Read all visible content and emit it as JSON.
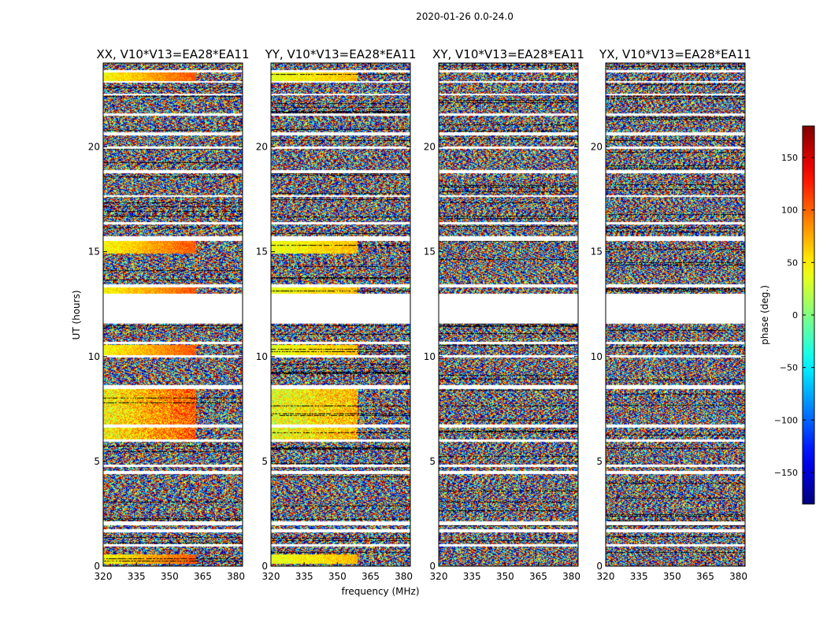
{
  "figure": {
    "suptitle": "2020-01-26 0.0-24.0"
  },
  "chart_data": {
    "type": "heatmap",
    "suptitle": "2020-01-26 0.0-24.0",
    "xlabel": "frequency (MHz)",
    "ylabel": "UT (hours)",
    "xlim": [
      320,
      383
    ],
    "ylim": [
      0,
      24
    ],
    "x_ticks": [
      320,
      335,
      350,
      365,
      380
    ],
    "y_ticks": [
      0,
      5,
      10,
      15,
      20
    ],
    "colormap": "jet",
    "colorbar": {
      "label": "phase (deg.)",
      "range": [
        -180,
        180
      ],
      "ticks": [
        -150,
        -100,
        -50,
        0,
        50,
        100,
        150
      ]
    },
    "panels": [
      {
        "title": "XX, V10*V13=EA28*EA11",
        "pol": "XX"
      },
      {
        "title": "YY, V10*V13=EA28*EA11",
        "pol": "YY"
      },
      {
        "title": "XY, V10*V13=EA28*EA11",
        "pol": "XY"
      },
      {
        "title": "YX, V10*V13=EA28*EA11",
        "pol": "YX"
      }
    ],
    "flagged_ut_ranges_hours": [
      [
        0.95,
        1.05
      ],
      [
        1.6,
        1.75
      ],
      [
        1.95,
        2.15
      ],
      [
        4.4,
        4.55
      ],
      [
        4.75,
        4.85
      ],
      [
        5.95,
        6.05
      ],
      [
        6.6,
        6.75
      ],
      [
        8.45,
        8.65
      ],
      [
        9.95,
        10.05
      ],
      [
        10.6,
        10.7
      ],
      [
        11.55,
        13.0
      ],
      [
        13.3,
        13.45
      ],
      [
        15.5,
        15.75
      ],
      [
        16.3,
        16.4
      ],
      [
        17.6,
        17.7
      ],
      [
        18.75,
        18.9
      ],
      [
        19.9,
        20.0
      ],
      [
        20.55,
        20.7
      ],
      [
        21.5,
        21.6
      ],
      [
        22.45,
        22.55
      ],
      [
        23.05,
        23.15
      ],
      [
        23.55,
        23.65
      ]
    ]
  }
}
